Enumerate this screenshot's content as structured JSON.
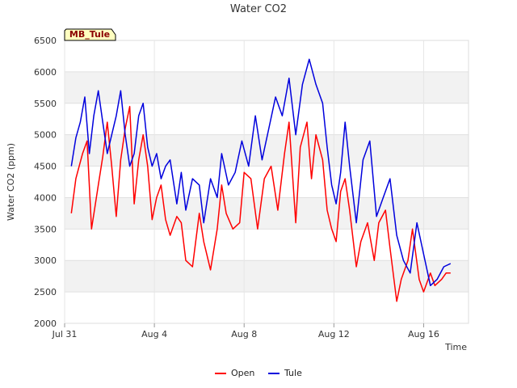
{
  "chart_data": {
    "type": "line",
    "title": "Water CO2",
    "badge": "MB_Tule",
    "xlabel": "Time",
    "ylabel": "Water CO2 (ppm)",
    "ylim": [
      2000,
      6500
    ],
    "yticks": [
      2000,
      2500,
      3000,
      3500,
      4000,
      4500,
      5000,
      5500,
      6000,
      6500
    ],
    "xlim": [
      0,
      18
    ],
    "xticks": [
      {
        "value": 0,
        "label": "Jul 31"
      },
      {
        "value": 4,
        "label": "Aug 4"
      },
      {
        "value": 8,
        "label": "Aug 8"
      },
      {
        "value": 12,
        "label": "Aug 12"
      },
      {
        "value": 16,
        "label": "Aug 16"
      }
    ],
    "grid": "horizontal bands",
    "legend_position": "bottom",
    "series": [
      {
        "name": "Open",
        "color": "#ff0000",
        "x": [
          0.3,
          0.5,
          0.8,
          1.0,
          1.2,
          1.5,
          1.7,
          1.9,
          2.1,
          2.3,
          2.5,
          2.7,
          2.9,
          3.1,
          3.3,
          3.5,
          3.7,
          3.9,
          4.1,
          4.3,
          4.5,
          4.7,
          5.0,
          5.2,
          5.4,
          5.7,
          6.0,
          6.2,
          6.5,
          6.8,
          7.0,
          7.2,
          7.5,
          7.8,
          8.0,
          8.3,
          8.6,
          8.9,
          9.2,
          9.5,
          9.8,
          10.0,
          10.3,
          10.5,
          10.8,
          11.0,
          11.2,
          11.5,
          11.7,
          11.9,
          12.1,
          12.3,
          12.5,
          12.7,
          13.0,
          13.2,
          13.5,
          13.8,
          14.0,
          14.3,
          14.5,
          14.8,
          15.0,
          15.3,
          15.5,
          15.8,
          16.0,
          16.3,
          16.5,
          16.8,
          17.0,
          17.2
        ],
        "values": [
          3750,
          4300,
          4700,
          4900,
          3500,
          4200,
          4650,
          5200,
          4500,
          3700,
          4600,
          5100,
          5450,
          3900,
          4600,
          5000,
          4500,
          3650,
          4000,
          4200,
          3650,
          3400,
          3700,
          3600,
          3000,
          2900,
          3750,
          3300,
          2850,
          3500,
          4200,
          3750,
          3500,
          3600,
          4400,
          4300,
          3500,
          4300,
          4500,
          3800,
          4700,
          5200,
          3600,
          4800,
          5200,
          4300,
          5000,
          4600,
          3800,
          3500,
          3300,
          4100,
          4300,
          3800,
          2900,
          3300,
          3600,
          3000,
          3600,
          3800,
          3200,
          2350,
          2700,
          3000,
          3500,
          2700,
          2500,
          2800,
          2600,
          2700,
          2800,
          2800
        ]
      },
      {
        "name": "Tule",
        "color": "#0000dd",
        "x": [
          0.3,
          0.5,
          0.7,
          0.9,
          1.1,
          1.3,
          1.5,
          1.7,
          1.9,
          2.1,
          2.3,
          2.5,
          2.7,
          2.9,
          3.1,
          3.3,
          3.5,
          3.7,
          3.9,
          4.1,
          4.3,
          4.5,
          4.7,
          5.0,
          5.2,
          5.4,
          5.7,
          6.0,
          6.2,
          6.5,
          6.8,
          7.0,
          7.3,
          7.6,
          7.9,
          8.2,
          8.5,
          8.8,
          9.1,
          9.4,
          9.7,
          10.0,
          10.3,
          10.6,
          10.9,
          11.2,
          11.5,
          11.7,
          11.9,
          12.1,
          12.3,
          12.5,
          12.7,
          13.0,
          13.3,
          13.6,
          13.9,
          14.2,
          14.5,
          14.8,
          15.1,
          15.4,
          15.7,
          16.0,
          16.3,
          16.6,
          16.9,
          17.2
        ],
        "values": [
          4500,
          4950,
          5200,
          5600,
          4700,
          5300,
          5700,
          5200,
          4700,
          5000,
          5300,
          5700,
          5000,
          4500,
          4700,
          5300,
          5500,
          4800,
          4500,
          4700,
          4300,
          4500,
          4600,
          3900,
          4400,
          3800,
          4300,
          4200,
          3600,
          4300,
          4000,
          4700,
          4200,
          4400,
          4900,
          4500,
          5300,
          4600,
          5100,
          5600,
          5300,
          5900,
          5000,
          5800,
          6200,
          5800,
          5500,
          4800,
          4200,
          3900,
          4400,
          5200,
          4500,
          3600,
          4600,
          4900,
          3700,
          4000,
          4300,
          3400,
          3000,
          2800,
          3600,
          3100,
          2600,
          2700,
          2900,
          2950
        ]
      }
    ]
  }
}
